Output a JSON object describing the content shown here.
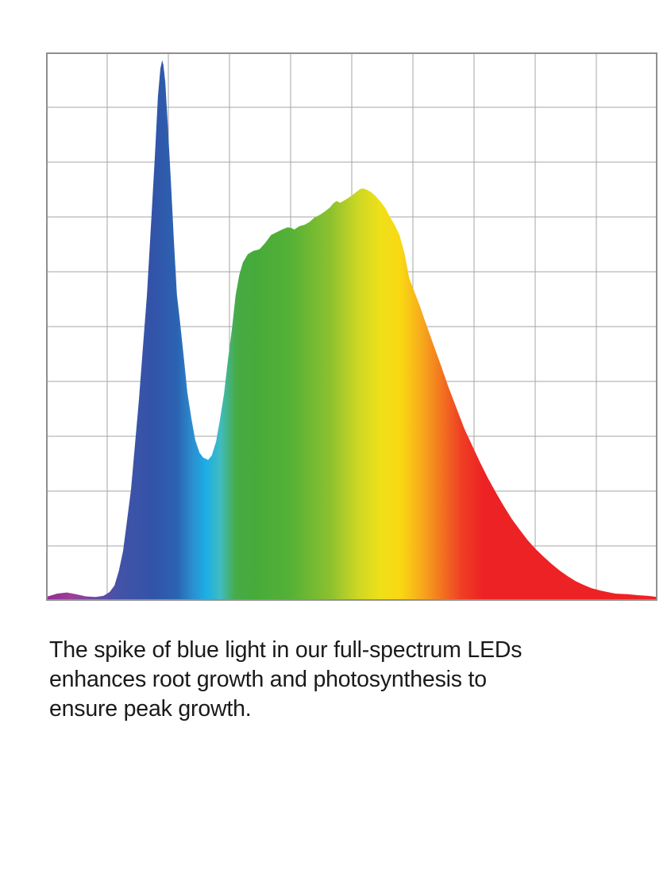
{
  "page": {
    "background": "#ffffff"
  },
  "caption": {
    "text": "The spike of blue light in our full-spectrum LEDs enhances root growth and photosynthesis to ensure peak growth.",
    "lines": [
      "The spike of blue light in our full-spectrum LEDs",
      "enhances root growth and photosynthesis to",
      "ensure peak growth."
    ],
    "color": "#1a1a1a"
  },
  "chart_data": {
    "type": "area",
    "title": "",
    "xlabel": "",
    "ylabel": "",
    "axis_tick_labels_visible": false,
    "description": "Full-spectrum LED spectral power distribution: narrow tall blue spike, cyan valley, broad green-yellow hump peaking in yellow, long red decay tail; area filled with horizontal rainbow gradient over a plain 10x10 gray grid with no axis labels.",
    "x_range_pct": [
      0,
      100
    ],
    "y_range_pct": [
      0,
      100
    ],
    "grid": {
      "columns": 10,
      "rows": 10,
      "line_color": "#a5a5a5",
      "border_color": "#8f8f8f",
      "background": "#ffffff"
    },
    "features": {
      "blue_spike": {
        "x_pct": 19.0,
        "height_pct": 98.6
      },
      "valley": {
        "x_pct": 26.5,
        "height_pct": 25.7
      },
      "broad_peak": {
        "x_pct": 51.9,
        "height_pct": 75.2
      }
    },
    "gradient_stops": [
      {
        "offset": 0.0,
        "color": "#8e2d90"
      },
      {
        "offset": 0.04,
        "color": "#9e3f98"
      },
      {
        "offset": 0.08,
        "color": "#6b4aa1"
      },
      {
        "offset": 0.12,
        "color": "#4253a7"
      },
      {
        "offset": 0.175,
        "color": "#3253a8"
      },
      {
        "offset": 0.215,
        "color": "#2b63b2"
      },
      {
        "offset": 0.24,
        "color": "#2b8fd0"
      },
      {
        "offset": 0.262,
        "color": "#1caee6"
      },
      {
        "offset": 0.285,
        "color": "#40bcc0"
      },
      {
        "offset": 0.31,
        "color": "#47ab47"
      },
      {
        "offset": 0.34,
        "color": "#46aa3a"
      },
      {
        "offset": 0.4,
        "color": "#55b135"
      },
      {
        "offset": 0.465,
        "color": "#8cc130"
      },
      {
        "offset": 0.51,
        "color": "#cdd724"
      },
      {
        "offset": 0.545,
        "color": "#eee01a"
      },
      {
        "offset": 0.58,
        "color": "#f9d813"
      },
      {
        "offset": 0.615,
        "color": "#f7a91c"
      },
      {
        "offset": 0.65,
        "color": "#f26f20"
      },
      {
        "offset": 0.68,
        "color": "#ee3e23"
      },
      {
        "offset": 0.715,
        "color": "#ed2224"
      },
      {
        "offset": 1.0,
        "color": "#ed2224"
      }
    ],
    "series": [
      {
        "name": "led-spectral-power-distribution",
        "fill": "rainbow-gradient",
        "points_pct": [
          [
            0,
            0.7
          ],
          [
            1.8,
            1.3
          ],
          [
            3.4,
            1.5
          ],
          [
            4.9,
            1.2
          ],
          [
            6.5,
            0.8
          ],
          [
            8.1,
            0.7
          ],
          [
            9.4,
            0.9
          ],
          [
            10.4,
            1.6
          ],
          [
            11.2,
            2.8
          ],
          [
            11.9,
            5.4
          ],
          [
            12.6,
            9.1
          ],
          [
            13.2,
            14.2
          ],
          [
            13.9,
            20.3
          ],
          [
            14.5,
            28
          ],
          [
            15.2,
            36.7
          ],
          [
            15.8,
            45.7
          ],
          [
            16.5,
            55.7
          ],
          [
            17.1,
            67.4
          ],
          [
            17.8,
            81.2
          ],
          [
            18.3,
            92
          ],
          [
            18.7,
            97.1
          ],
          [
            19,
            98.6
          ],
          [
            19.2,
            97.7
          ],
          [
            19.5,
            94.5
          ],
          [
            19.9,
            87
          ],
          [
            20.4,
            76.8
          ],
          [
            20.9,
            65.9
          ],
          [
            21.4,
            55.8
          ],
          [
            21.9,
            51
          ],
          [
            22.5,
            44.6
          ],
          [
            23.1,
            38
          ],
          [
            23.8,
            33
          ],
          [
            24.4,
            29.3
          ],
          [
            25.1,
            27
          ],
          [
            25.7,
            26.1
          ],
          [
            26.5,
            25.7
          ],
          [
            27.1,
            26.5
          ],
          [
            27.8,
            29
          ],
          [
            28.4,
            32.8
          ],
          [
            29.1,
            37.7
          ],
          [
            29.7,
            43.5
          ],
          [
            30.4,
            49.6
          ],
          [
            31,
            55.7
          ],
          [
            31.6,
            59.4
          ],
          [
            32.2,
            61.7
          ],
          [
            33,
            63.2
          ],
          [
            33.9,
            63.8
          ],
          [
            34.9,
            64.1
          ],
          [
            35.8,
            65.2
          ],
          [
            36.8,
            66.7
          ],
          [
            37.7,
            67.2
          ],
          [
            38.6,
            67.7
          ],
          [
            39.5,
            68.1
          ],
          [
            40.1,
            68
          ],
          [
            40.6,
            67.7
          ],
          [
            41.4,
            68.3
          ],
          [
            42.3,
            68.6
          ],
          [
            43.1,
            69.1
          ],
          [
            43.9,
            69.9
          ],
          [
            44.8,
            70.4
          ],
          [
            45.6,
            71
          ],
          [
            46.4,
            71.7
          ],
          [
            47,
            72.5
          ],
          [
            47.5,
            72.9
          ],
          [
            48.1,
            72.6
          ],
          [
            48.6,
            72.9
          ],
          [
            49.2,
            73.3
          ],
          [
            50,
            73.9
          ],
          [
            50.8,
            74.6
          ],
          [
            51.4,
            75.1
          ],
          [
            51.9,
            75.2
          ],
          [
            52.6,
            74.9
          ],
          [
            53.2,
            74.5
          ],
          [
            53.9,
            73.8
          ],
          [
            54.7,
            72.8
          ],
          [
            55.5,
            71.6
          ],
          [
            56.2,
            70.1
          ],
          [
            57,
            68.6
          ],
          [
            57.8,
            66.7
          ],
          [
            58.6,
            63.5
          ],
          [
            59.4,
            58.8
          ],
          [
            60.3,
            56.2
          ],
          [
            61.2,
            53.6
          ],
          [
            61.9,
            51.3
          ],
          [
            63.2,
            47.2
          ],
          [
            64.5,
            43.2
          ],
          [
            65.8,
            39
          ],
          [
            67.1,
            35.2
          ],
          [
            68.4,
            31.4
          ],
          [
            69.7,
            28.3
          ],
          [
            71,
            25.2
          ],
          [
            72.3,
            22.3
          ],
          [
            73.6,
            19.7
          ],
          [
            74.9,
            17.2
          ],
          [
            76.2,
            14.9
          ],
          [
            77.5,
            12.9
          ],
          [
            78.8,
            11
          ],
          [
            80.1,
            9.4
          ],
          [
            81.4,
            8
          ],
          [
            82.7,
            6.7
          ],
          [
            84,
            5.5
          ],
          [
            85.3,
            4.5
          ],
          [
            86.6,
            3.6
          ],
          [
            87.9,
            2.9
          ],
          [
            89.2,
            2.3
          ],
          [
            90.5,
            1.9
          ],
          [
            91.8,
            1.6
          ],
          [
            93.1,
            1.3
          ],
          [
            95.1,
            1.2
          ],
          [
            97,
            1
          ],
          [
            98.3,
            0.9
          ],
          [
            100,
            0.7
          ]
        ]
      }
    ]
  }
}
